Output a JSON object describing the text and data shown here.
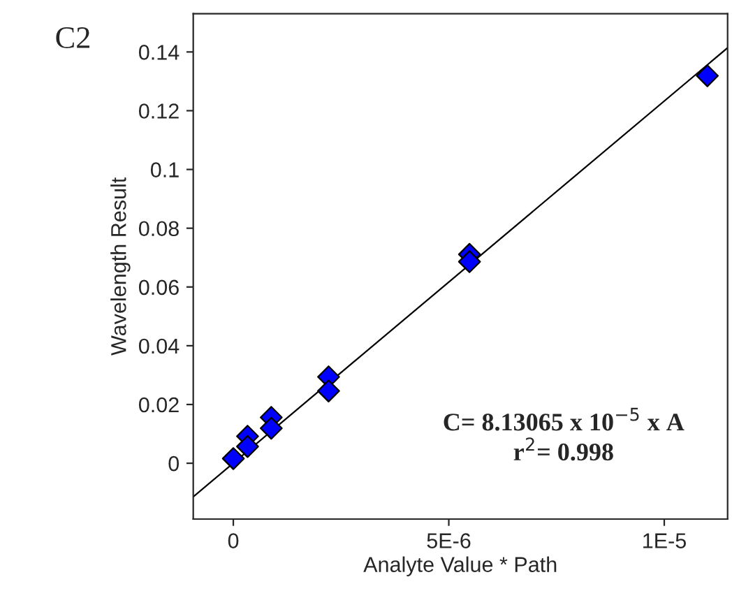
{
  "chart_data": {
    "type": "scatter",
    "title": "C2",
    "xlabel": "Analyte Value * Path",
    "ylabel": "Wavelength Result",
    "x": [
      0,
      3.3e-07,
      3.3e-07,
      8.8e-07,
      8.8e-07,
      2.21e-06,
      2.21e-06,
      5.48e-06,
      5.48e-06,
      1.1e-05
    ],
    "series": [
      {
        "color": "#0000ff",
        "marker": "diamond",
        "values": [
          0.0016,
          0.0092,
          0.0057,
          0.0156,
          0.0119,
          0.0294,
          0.0246,
          0.0711,
          0.0686,
          0.1319
        ]
      },
      {
        "type": "line",
        "color": "#000000",
        "marker": "none",
        "x": [
          -9.3e-07,
          1.147e-05
        ],
        "values": [
          -0.0114,
          0.1414
        ]
      }
    ],
    "annotations": [
      "C= 8.13065 x 10$^{−5}$ x A",
      "r$^{2}$= 0.998"
    ],
    "xlim": [
      -9.3e-07,
      1.147e-05
    ],
    "ylim": [
      -0.019,
      0.153
    ],
    "xticks": [
      0,
      {
        "value": 5e-06,
        "label": "5E-6"
      },
      {
        "value": 1e-05,
        "label": "1E-5"
      }
    ],
    "yticks": [
      0,
      0.02,
      0.04,
      0.06,
      0.08,
      0.1,
      0.12,
      0.14
    ],
    "grid": false
  }
}
